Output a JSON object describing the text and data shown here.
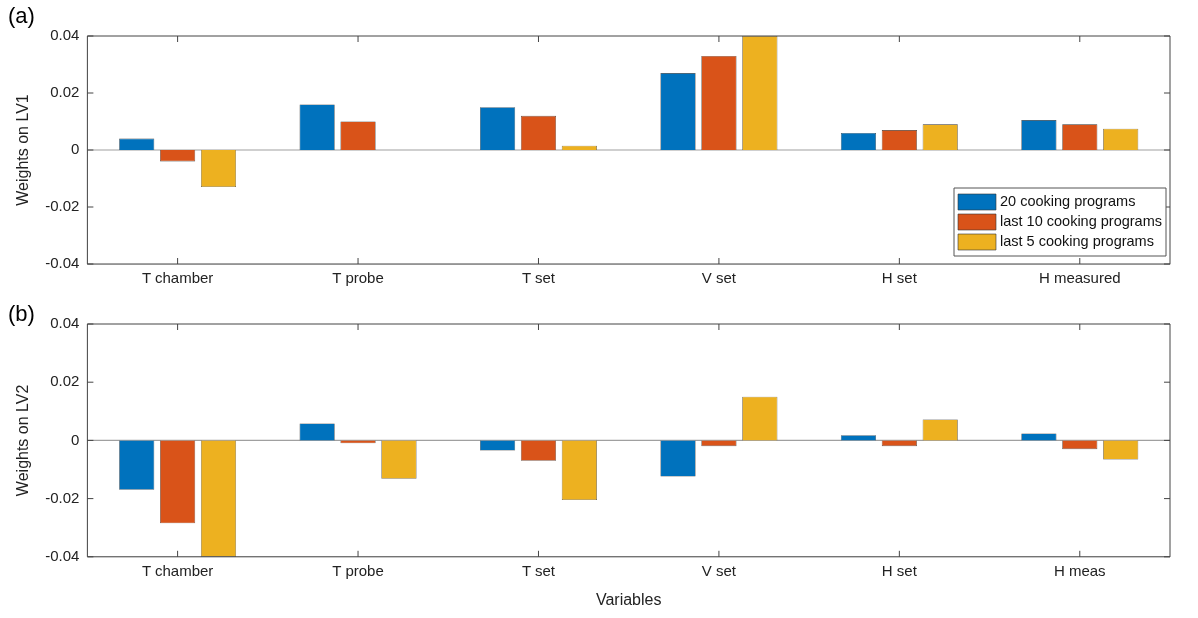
{
  "chart_data": [
    {
      "type": "bar",
      "ylabel": "Weights on LV1",
      "annotations": [
        "(a)"
      ],
      "categories": [
        "T chamber",
        "T probe",
        "T set",
        "V set",
        "H set",
        "H measured"
      ],
      "ylim": [
        -0.04,
        0.04
      ],
      "yticks": [
        -0.04,
        -0.02,
        0,
        0.02,
        0.04
      ],
      "grid": false,
      "legend": "bottom right",
      "ref_lines": [
        {
          "axis": "y",
          "value": 0,
          "color": "#a0a0a0"
        }
      ],
      "series": [
        {
          "name": "20 cooking programs",
          "color": "#0072bd",
          "values": [
            0.004,
            0.016,
            0.015,
            0.027,
            0.006,
            0.0105
          ]
        },
        {
          "name": "last 10 cooking programs",
          "color": "#d95319",
          "values": [
            -0.004,
            0.01,
            0.012,
            0.033,
            0.007,
            0.009
          ]
        },
        {
          "name": "last 5 cooking programs",
          "color": "#edb120",
          "values": [
            -0.013,
            null,
            0.0015,
            0.04,
            0.009,
            0.0075
          ]
        }
      ]
    },
    {
      "type": "bar",
      "ylabel": "Weights on LV2",
      "xlabel": "Variables",
      "annotations": [
        "(b)"
      ],
      "categories": [
        "T chamber",
        "T probe",
        "T set",
        "V set",
        "H set",
        "H meas"
      ],
      "ylim": [
        -0.04,
        0.04
      ],
      "yticks": [
        -0.04,
        -0.02,
        0,
        0.02,
        0.04
      ],
      "grid": false,
      "legend": false,
      "ref_lines": [
        {
          "axis": "y",
          "value": 0,
          "color": "#a0a0a0"
        }
      ],
      "series": [
        {
          "color": "#0072bd",
          "values": [
            -0.017,
            0.0058,
            -0.0035,
            -0.0124,
            0.0018,
            0.0024
          ]
        },
        {
          "color": "#d95319",
          "values": [
            -0.0285,
            -0.001,
            -0.007,
            -0.002,
            -0.002,
            -0.003
          ]
        },
        {
          "color": "#edb120",
          "values": [
            -0.04,
            -0.0132,
            -0.0205,
            0.015,
            0.0072,
            -0.0066
          ]
        }
      ]
    }
  ]
}
